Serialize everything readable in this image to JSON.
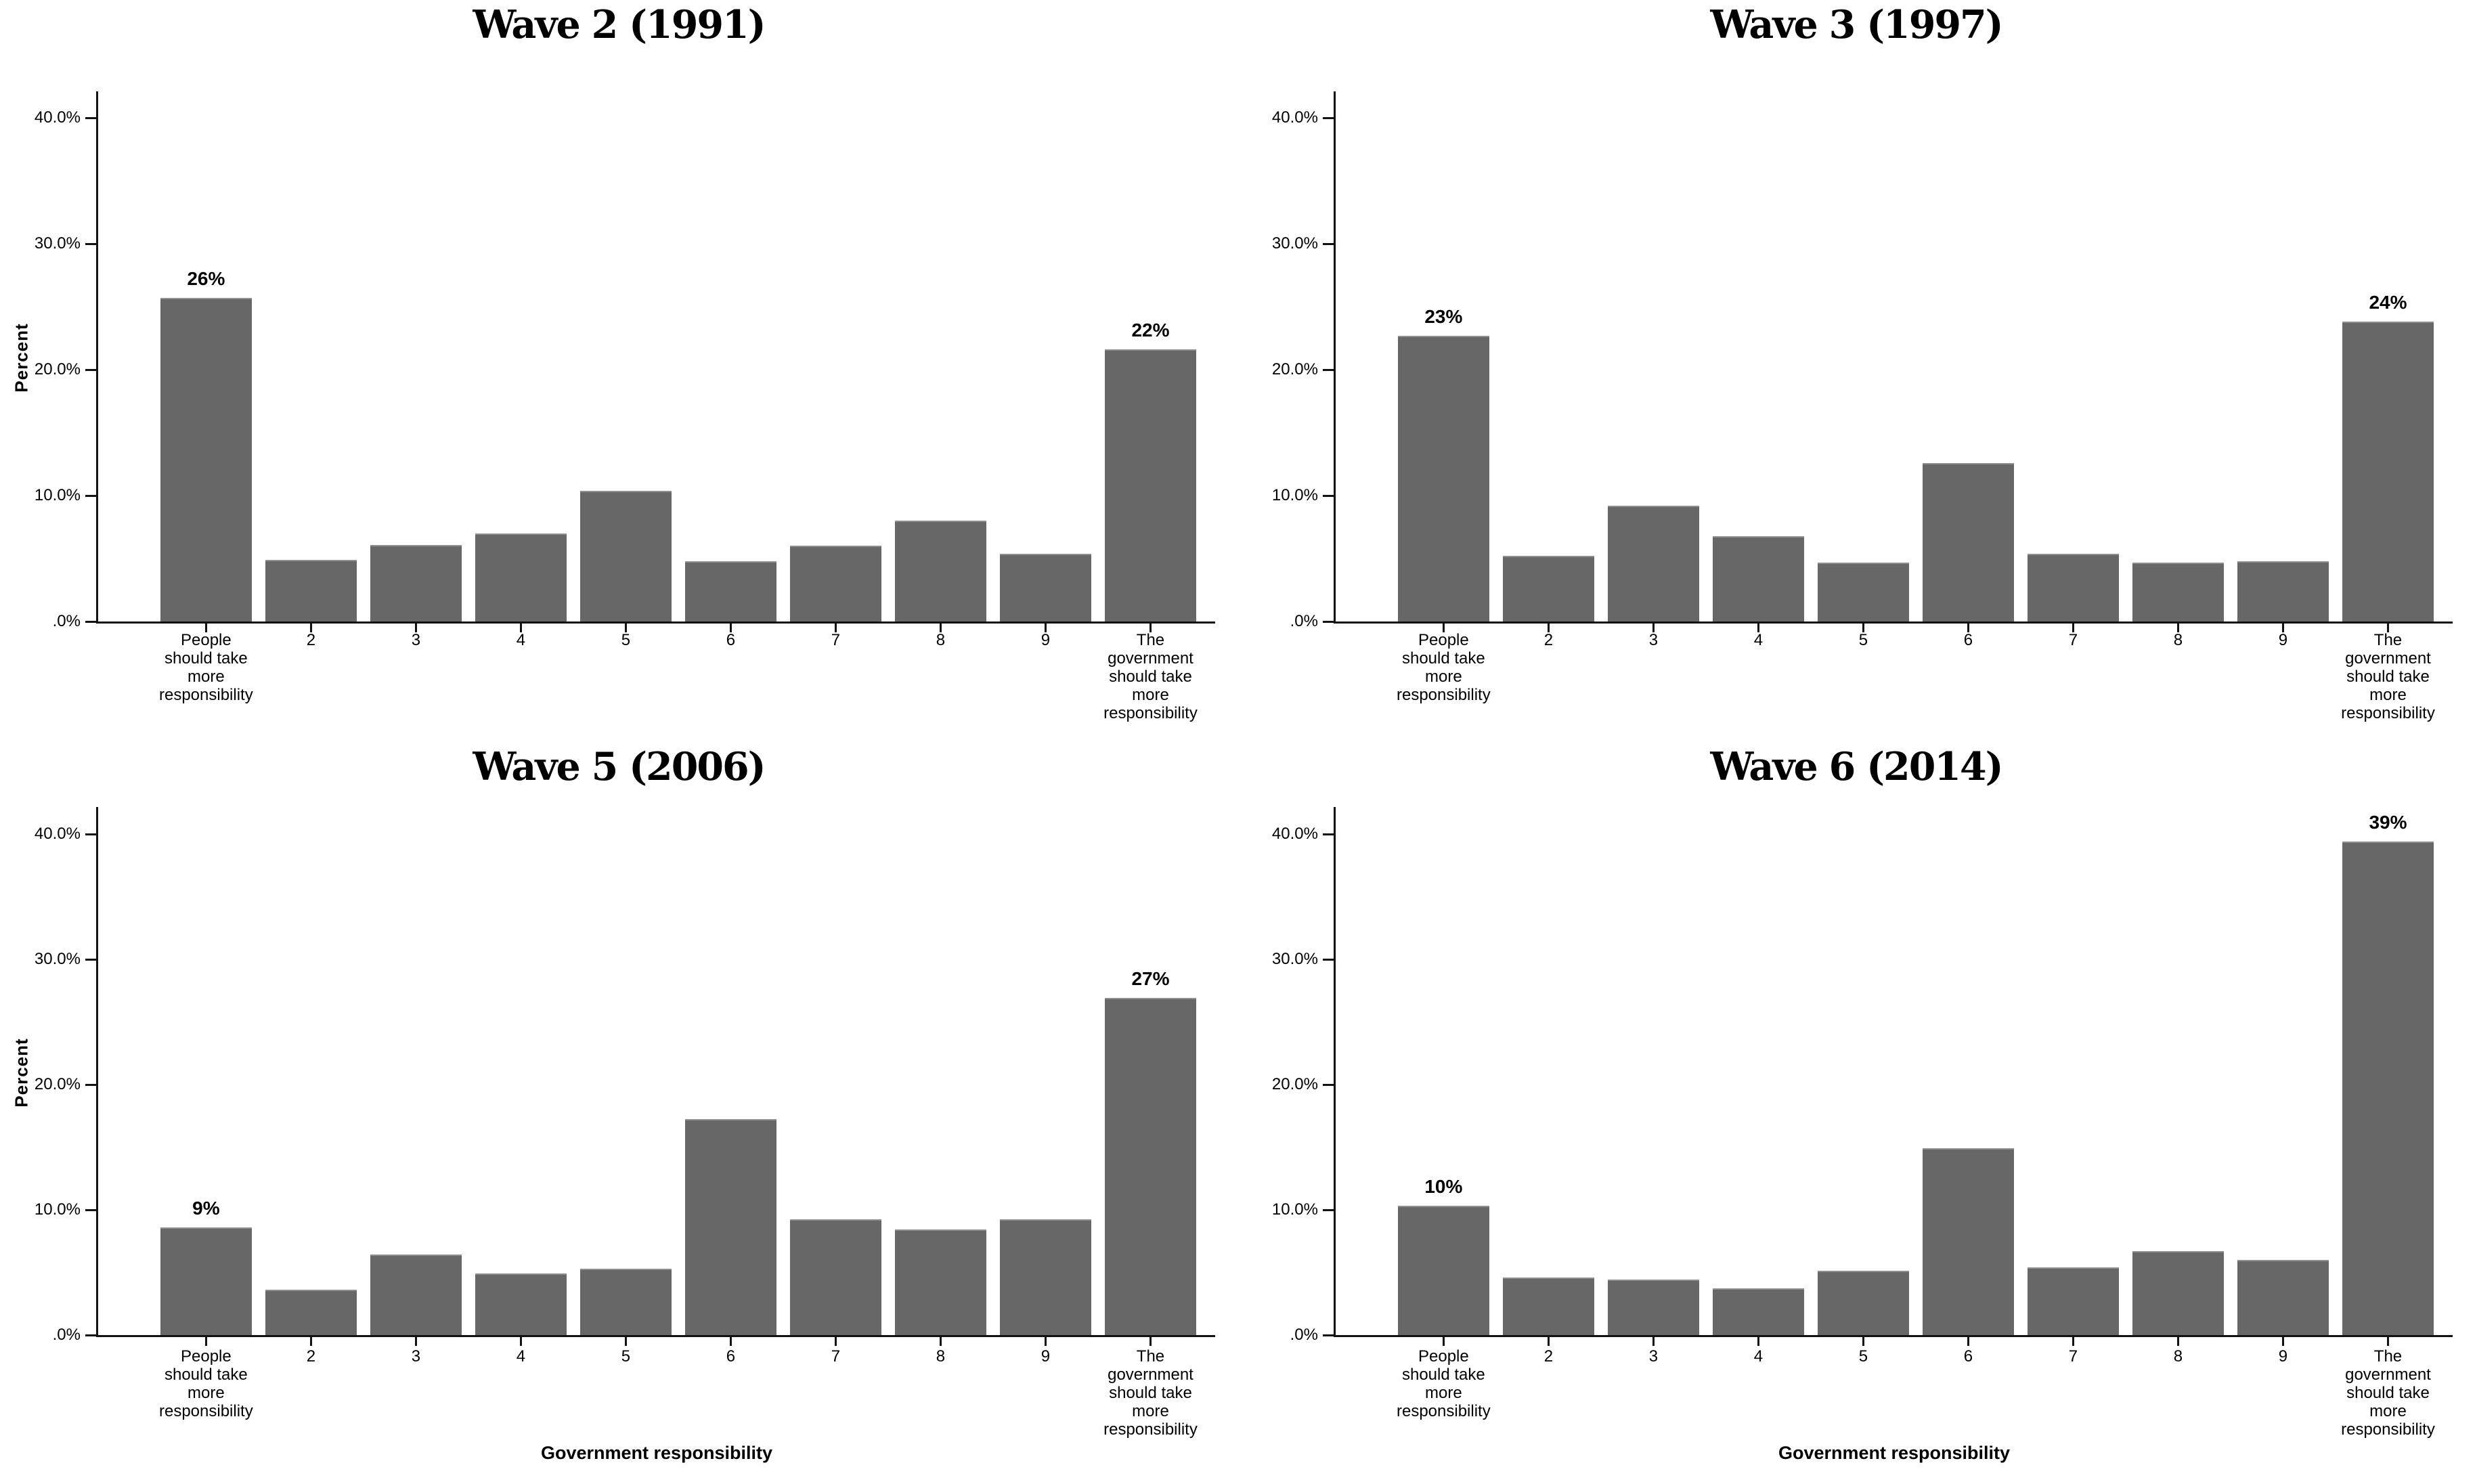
{
  "figure": {
    "layout": "2x2 grid of bar charts",
    "bar_color": "#676767",
    "axis_color": "#111111",
    "text_color": "#000000"
  },
  "chart_data": [
    {
      "type": "bar",
      "title": "Wave 2 (1991)",
      "ylabel": "Percent",
      "xlabel": "",
      "ylim": [
        0,
        43
      ],
      "grid": "off",
      "categories": [
        "People\nshould take\nmore\nresponsibility",
        "2",
        "3",
        "4",
        "5",
        "6",
        "7",
        "8",
        "9",
        "The\ngovernment\nshould take\nmore\nresponsibility"
      ],
      "values": [
        25.7,
        4.9,
        6.1,
        7.0,
        10.4,
        4.8,
        6.0,
        8.0,
        5.4,
        21.6
      ],
      "bar_labels": [
        "26%",
        "",
        "",
        "",
        "",
        "",
        "",
        "",
        "",
        "22%"
      ],
      "y_ticks": {
        "values": [
          40,
          30,
          20,
          10,
          0
        ],
        "labels": [
          "40.0%",
          "30.0%",
          "20.0%",
          "10.0%",
          ".0%"
        ]
      }
    },
    {
      "type": "bar",
      "title": "Wave 3 (1997)",
      "ylabel": "",
      "xlabel": "",
      "ylim": [
        0,
        43
      ],
      "grid": "off",
      "categories": [
        "People\nshould take\nmore\nresponsibility",
        "2",
        "3",
        "4",
        "5",
        "6",
        "7",
        "8",
        "9",
        "The\ngovernment\nshould take\nmore\nresponsibility"
      ],
      "values": [
        22.7,
        5.2,
        9.2,
        6.8,
        4.7,
        12.6,
        5.4,
        4.7,
        4.8,
        23.8
      ],
      "bar_labels": [
        "23%",
        "",
        "",
        "",
        "",
        "",
        "",
        "",
        "",
        "24%"
      ],
      "y_ticks": {
        "values": [
          40,
          30,
          20,
          10,
          0
        ],
        "labels": [
          "40.0%",
          "30.0%",
          "20.0%",
          "10.0%",
          ".0%"
        ]
      }
    },
    {
      "type": "bar",
      "title": "Wave 5 (2006)",
      "ylabel": "Percent",
      "xlabel": "Government responsibility",
      "ylim": [
        0,
        43
      ],
      "grid": "off",
      "categories": [
        "People\nshould take\nmore\nresponsibility",
        "2",
        "3",
        "4",
        "5",
        "6",
        "7",
        "8",
        "9",
        "The\ngovernment\nshould take\nmore\nresponsibility"
      ],
      "values": [
        8.6,
        3.6,
        6.4,
        4.9,
        5.3,
        17.2,
        9.2,
        8.4,
        9.2,
        26.9
      ],
      "bar_labels": [
        "9%",
        "",
        "",
        "",
        "",
        "",
        "",
        "",
        "",
        "27%"
      ],
      "y_ticks": {
        "values": [
          40,
          30,
          20,
          10,
          0
        ],
        "labels": [
          "40.0%",
          "30.0%",
          "20.0%",
          "10.0%",
          ".0%"
        ]
      }
    },
    {
      "type": "bar",
      "title": "Wave 6 (2014)",
      "ylabel": "",
      "xlabel": "Government responsibility",
      "ylim": [
        0,
        43
      ],
      "grid": "off",
      "categories": [
        "People\nshould take\nmore\nresponsibility",
        "2",
        "3",
        "4",
        "5",
        "6",
        "7",
        "8",
        "9",
        "The\ngovernment\nshould take\nmore\nresponsibility"
      ],
      "values": [
        10.3,
        4.6,
        4.4,
        3.7,
        5.1,
        14.9,
        5.4,
        6.7,
        6.0,
        39.4
      ],
      "bar_labels": [
        "10%",
        "",
        "",
        "",
        "",
        "",
        "",
        "",
        "",
        "39%"
      ],
      "y_ticks": {
        "values": [
          40,
          30,
          20,
          10,
          0
        ],
        "labels": [
          "40.0%",
          "30.0%",
          "20.0%",
          "10.0%",
          ".0%"
        ]
      }
    }
  ]
}
